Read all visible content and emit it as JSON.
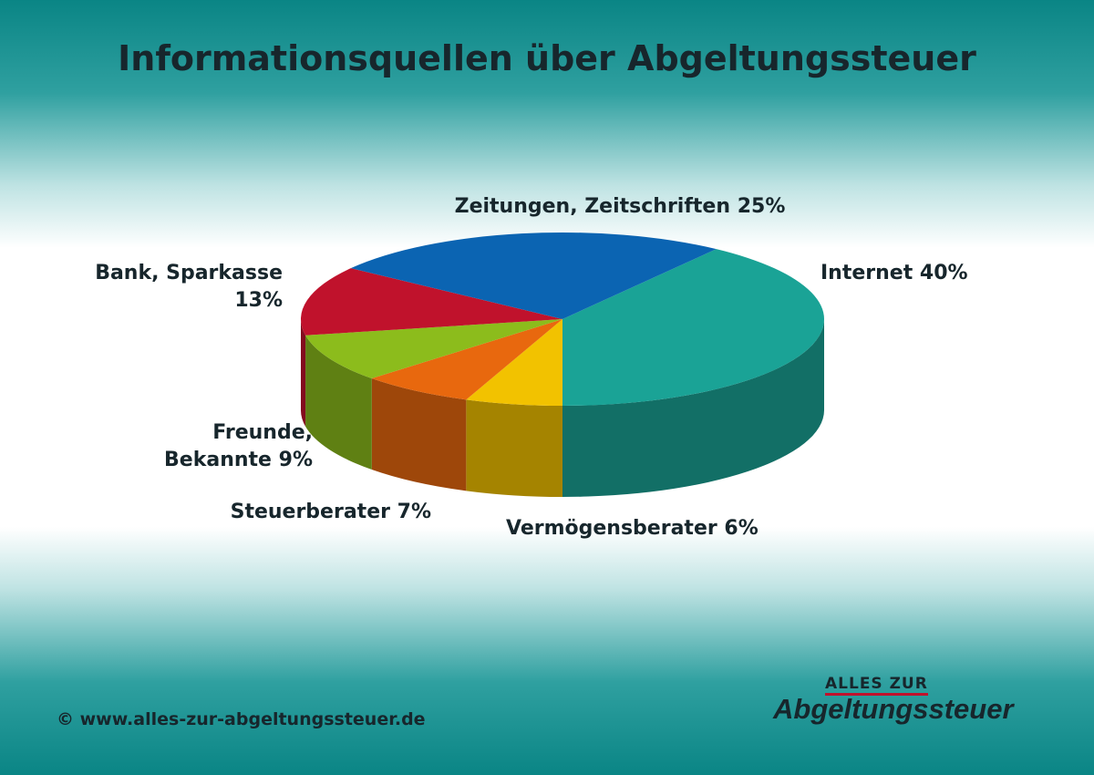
{
  "chart_data": {
    "type": "pie",
    "title": "Informationsquellen über Abgeltungssteuer",
    "categories": [
      "Internet",
      "Vermögensberater",
      "Steuerberater",
      "Freunde, Bekannte",
      "Bank, Sparkasse",
      "Zeitungen, Zeitschriften"
    ],
    "values": [
      40,
      6,
      7,
      9,
      13,
      25
    ],
    "value_labels": [
      "40%",
      "6%",
      "7%",
      "9%",
      "13%",
      "25%"
    ],
    "colors": [
      "#1aa396",
      "#f2c200",
      "#e8680e",
      "#8cbc1c",
      "#c0122c",
      "#0b64b2"
    ]
  },
  "footer": {
    "copyright": "© www.alles-zur-abgeltungssteuer.de"
  },
  "logo": {
    "top": "ALLES ZUR",
    "bottom": "Abgeltungssteuer"
  }
}
